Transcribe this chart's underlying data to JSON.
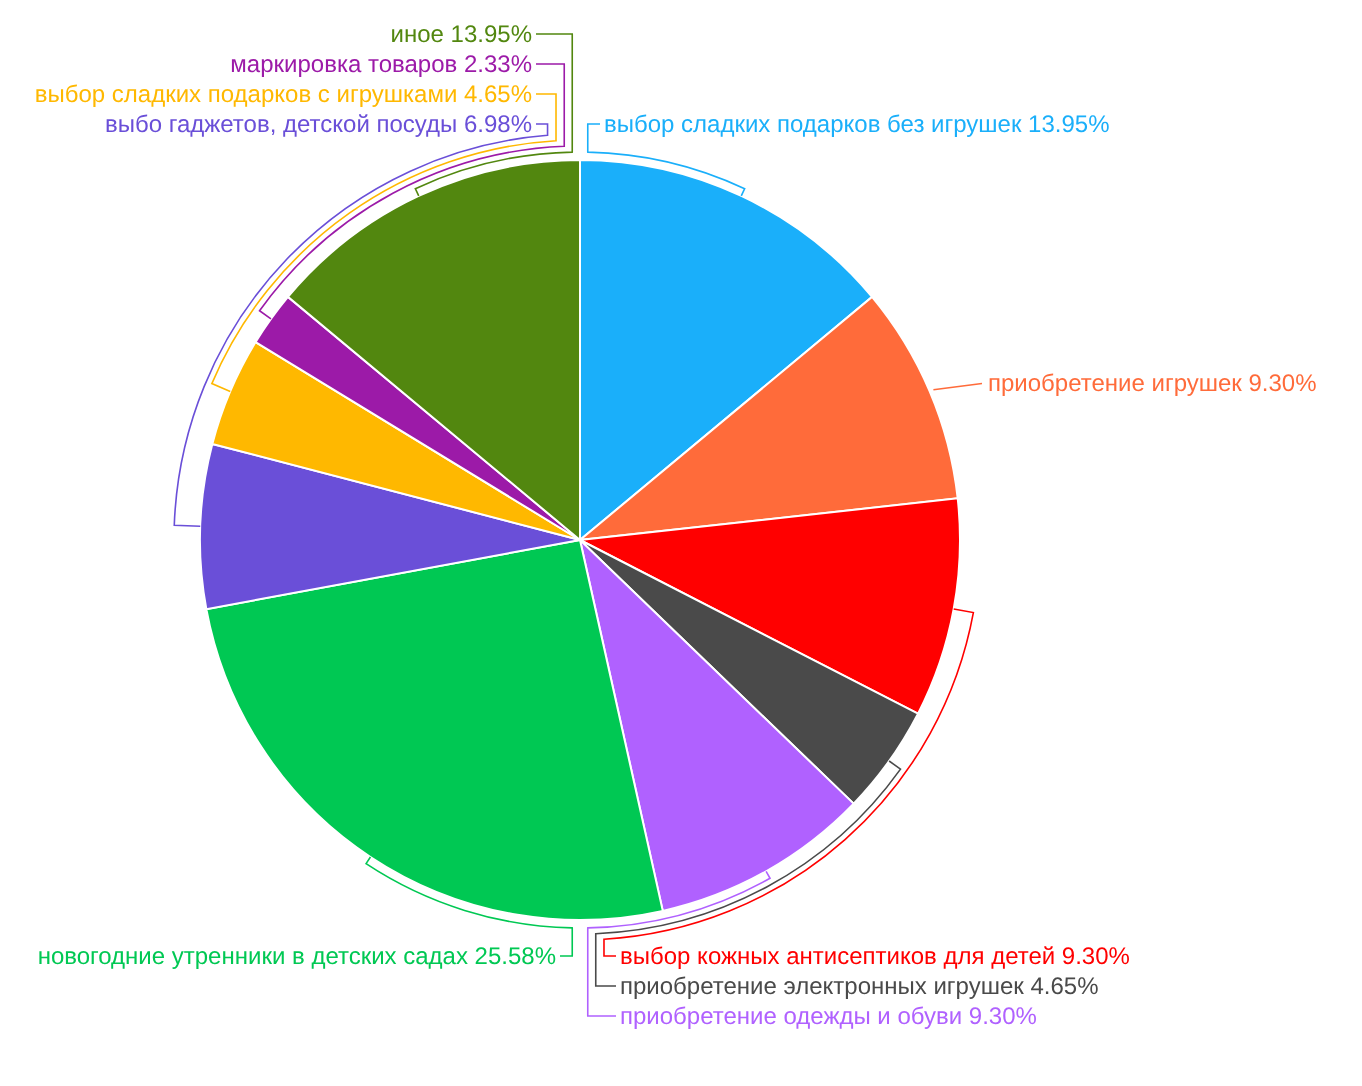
{
  "chart_data": {
    "type": "pie",
    "categories": [
      "выбор сладких подарков без игрушек",
      "приобретение игрушек",
      "выбор кожных антисептиков для детей",
      "приобретение электронных игрушек",
      "приобретение одежды и обуви",
      "новогодние утренники в детских садах",
      "выбо гаджетов, детской посуды",
      "выбор сладких подарков с игрушками",
      "маркировка товаров",
      "иное"
    ],
    "values": [
      13.95,
      9.3,
      9.3,
      4.65,
      9.3,
      25.58,
      6.98,
      4.65,
      2.33,
      13.95
    ],
    "value_labels": [
      "13.95%",
      "9.30%",
      "9.30%",
      "4.65%",
      "9.30%",
      "25.58%",
      "6.98%",
      "4.65%",
      "2.33%",
      "13.95%"
    ],
    "colors": [
      "#1aaffa",
      "#ff6b3a",
      "#ff0000",
      "#4a4a4a",
      "#b061ff",
      "#00c853",
      "#6a4fd8",
      "#ffb800",
      "#9c1aa8",
      "#52870f"
    ]
  }
}
